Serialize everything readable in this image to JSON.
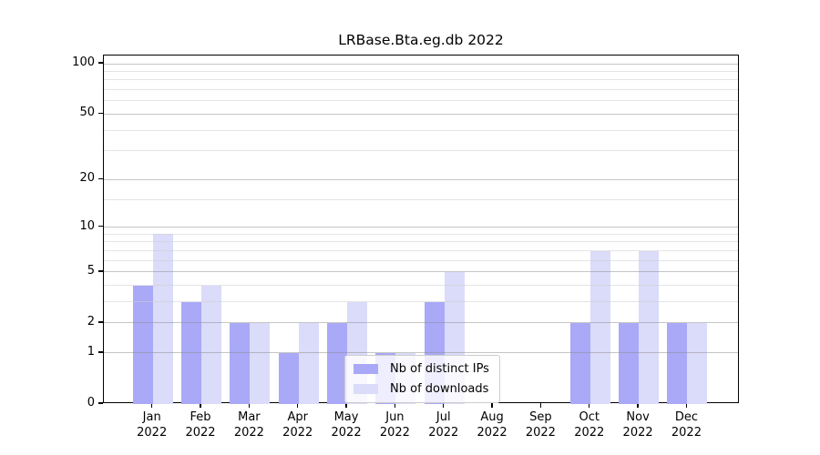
{
  "chart_data": {
    "type": "bar",
    "title": "LRBase.Bta.eg.db 2022",
    "x": [
      "Jan",
      "Feb",
      "Mar",
      "Apr",
      "May",
      "Jun",
      "Jul",
      "Aug",
      "Sep",
      "Oct",
      "Nov",
      "Dec"
    ],
    "x_year": "2022",
    "series": [
      {
        "name": "Nb of distinct IPs",
        "color": "#a9a9f8",
        "values": [
          4,
          3,
          2,
          1,
          2,
          1,
          3,
          0,
          0,
          2,
          2,
          2
        ]
      },
      {
        "name": "Nb of downloads",
        "color": "#dbdbfa",
        "values": [
          9,
          4,
          2,
          2,
          3,
          1,
          5,
          0,
          0,
          7,
          7,
          2
        ]
      }
    ],
    "y_axis": {
      "scale": "log1p",
      "ticks": [
        0,
        1,
        2,
        5,
        10,
        20,
        50,
        100
      ],
      "minor_ticks": [
        3,
        4,
        6,
        7,
        8,
        9,
        15,
        30,
        40,
        60,
        70,
        80,
        90
      ],
      "ylim": [
        0,
        112
      ]
    },
    "xlabel": "",
    "ylabel": "",
    "legend_position": "lower center",
    "grid": {
      "on": true,
      "major_color": "#cbcbcb",
      "minor_color": "#e9e9e9"
    },
    "colors": {
      "background": "#ffffff",
      "axis": "#000000"
    }
  }
}
